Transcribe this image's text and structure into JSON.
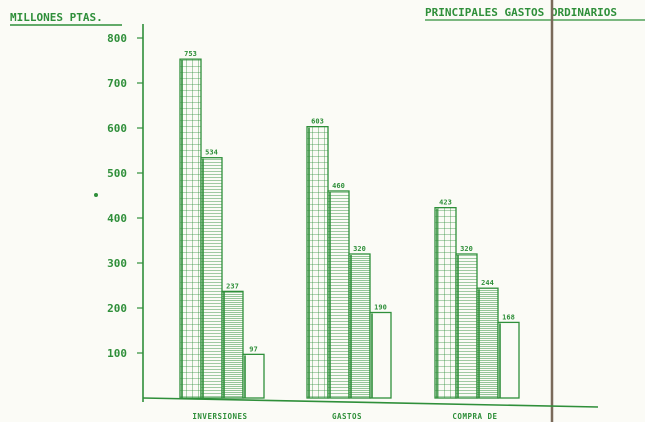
{
  "header": {
    "units_label": "MILLONES PTAS.",
    "chart_title": "PRINCIPALES GASTOS ORDINARIOS"
  },
  "colors": {
    "ink": "#2f8f3a",
    "paper": "#fbfbf6",
    "fold": "#7a6a5a"
  },
  "chart_data": {
    "type": "bar",
    "title": "PRINCIPALES GASTOS ORDINARIOS",
    "ylabel": "MILLONES PTAS.",
    "xlabel": "",
    "ylim": [
      0,
      800
    ],
    "yticks": [
      100,
      200,
      300,
      400,
      500,
      600,
      700,
      800
    ],
    "grid": false,
    "categories": [
      "INVERSIONES",
      "GASTOS",
      "COMPRA DE"
    ],
    "series": [
      {
        "pattern": "grid",
        "values": [
          753,
          603,
          423
        ]
      },
      {
        "pattern": "hlines",
        "values": [
          534,
          460,
          320
        ]
      },
      {
        "pattern": "dense-hlines",
        "values": [
          237,
          320,
          244
        ]
      },
      {
        "pattern": "blank",
        "values": [
          97,
          190,
          168
        ]
      }
    ],
    "data_labels": [
      [
        "753",
        "534",
        "237",
        "97"
      ],
      [
        "603",
        "460",
        "320",
        "190"
      ],
      [
        "423",
        "320",
        "244",
        "168"
      ]
    ]
  }
}
